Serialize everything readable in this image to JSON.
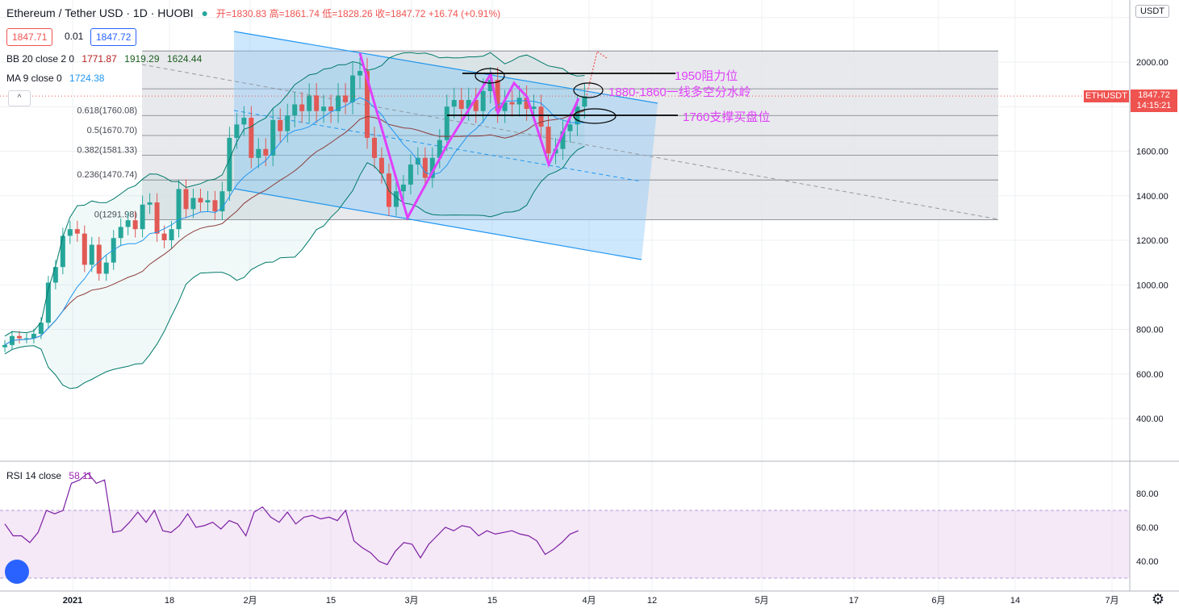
{
  "header": {
    "symbol": "Ethereum / Tether USD · 1D · HUOBI",
    "ohlc": "开=1830.83 高=1861.74 低=1828.26 收=1847.72 +16.74 (+0.91%)",
    "bid": "1847.71",
    "spread": "0.01",
    "ask": "1847.72"
  },
  "indicators": {
    "bb_label": "BB 20 close 2 0",
    "bb_basis": "1771.87",
    "bb_upper": "1919.29",
    "bb_lower": "1624.44",
    "ma_label": "MA 9 close 0",
    "ma_value": "1724.38",
    "rsi_label": "RSI 14 close",
    "rsi_value": "58.11"
  },
  "axis": {
    "currency": "USDT",
    "symbol_tag": "ETHUSDT",
    "last_price": "1847.72",
    "countdown": "14:15:21",
    "price_ticks": [
      "2000.00",
      "1800.00",
      "1600.00",
      "1400.00",
      "1200.00",
      "1000.00",
      "800.00",
      "600.00",
      "400.00"
    ],
    "rsi_ticks": [
      "80.00",
      "60.00",
      "40.00"
    ],
    "time_ticks": [
      "2021",
      "18",
      "2月",
      "15",
      "3月",
      "15",
      "4月",
      "12",
      "5月",
      "17",
      "6月",
      "14",
      "7月"
    ]
  },
  "annotations": {
    "resistance": "1950阻力位",
    "watershed": "1880-1860一线多空分水岭",
    "support": "1760支撑买盘位"
  },
  "chart_data": {
    "type": "candlestick",
    "fib_levels": [
      {
        "label": "0.618(1760.08)",
        "ratio": 0.618,
        "price": 1760.08
      },
      {
        "label": "0.5(1670.70)",
        "ratio": 0.5,
        "price": 1670.7
      },
      {
        "label": "0.382(1581.33)",
        "ratio": 0.382,
        "price": 1581.33
      },
      {
        "label": "0.236(1470.74)",
        "ratio": 0.236,
        "price": 1470.74
      },
      {
        "label": "0(1291.98)",
        "ratio": 0,
        "price": 1291.98
      }
    ],
    "fib_high": 2050,
    "close": [
      730,
      770,
      760,
      760,
      780,
      830,
      1010,
      1080,
      1220,
      1250,
      1230,
      1090,
      1180,
      1050,
      1100,
      1210,
      1260,
      1290,
      1250,
      1360,
      1370,
      1230,
      1200,
      1250,
      1430,
      1340,
      1390,
      1370,
      1380,
      1330,
      1420,
      1660,
      1720,
      1750,
      1570,
      1610,
      1580,
      1740,
      1690,
      1760,
      1810,
      1780,
      1850,
      1780,
      1800,
      1780,
      1850,
      1820,
      1940,
      1960,
      1660,
      1570,
      1500,
      1350,
      1420,
      1450,
      1540,
      1570,
      1480,
      1570,
      1650,
      1800,
      1830,
      1790,
      1830,
      1780,
      1870,
      1920,
      1780,
      1820,
      1810,
      1840,
      1790,
      1800,
      1710,
      1590,
      1610,
      1690,
      1720,
      1800,
      1847
    ],
    "rsi": [
      62,
      55,
      55,
      51,
      57,
      70,
      68,
      70,
      86,
      88,
      92,
      86,
      88,
      57,
      58,
      63,
      69,
      63,
      70,
      58,
      57,
      61,
      68,
      60,
      61,
      63,
      59,
      64,
      62,
      55,
      69,
      72,
      66,
      63,
      69,
      62,
      66,
      67,
      65,
      66,
      64,
      70,
      52,
      48,
      45,
      40,
      38,
      46,
      51,
      50,
      42,
      50,
      55,
      60,
      58,
      61,
      60,
      55,
      58,
      56,
      57,
      58,
      56,
      55,
      52,
      44,
      47,
      51,
      56,
      58
    ],
    "ylim": [
      300,
      2150
    ]
  }
}
